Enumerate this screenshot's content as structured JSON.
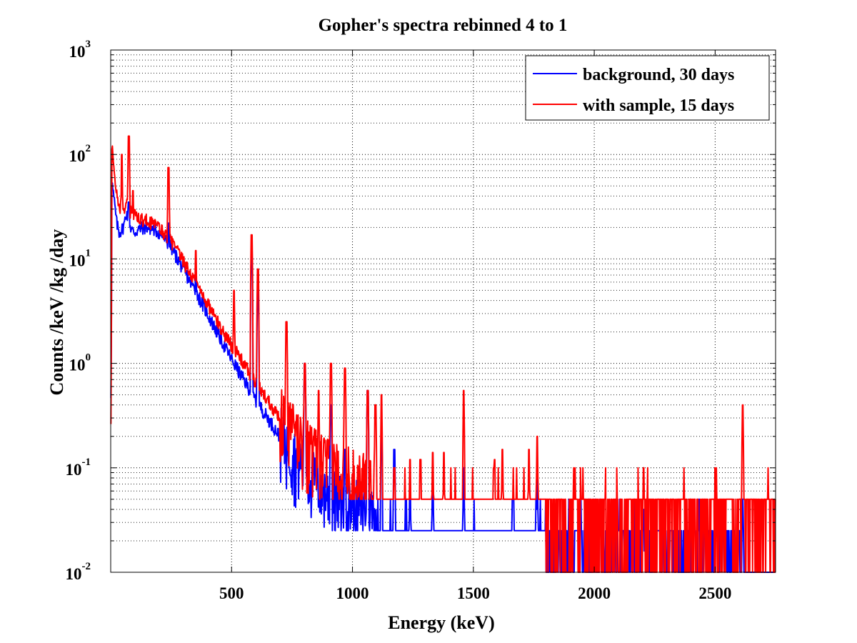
{
  "chart_data": {
    "type": "line",
    "title": "Gopher's spectra rebinned 4 to 1",
    "xlabel": "Energy (keV)",
    "ylabel": "Counts /keV /kg /day",
    "xlim": [
      0,
      2750
    ],
    "ylim": [
      0.01,
      1000
    ],
    "y_scale": "log",
    "grid": true,
    "x_ticks": [
      500,
      1000,
      1500,
      2000,
      2500
    ],
    "x_tick_labels": [
      "500",
      "1000",
      "1500",
      "2000",
      "2500"
    ],
    "y_ticks": [
      {
        "value": 0.01,
        "base": "10",
        "exp": "-2"
      },
      {
        "value": 0.1,
        "base": "10",
        "exp": "-1"
      },
      {
        "value": 1,
        "base": "10",
        "exp": "0"
      },
      {
        "value": 10,
        "base": "10",
        "exp": "1"
      },
      {
        "value": 100,
        "base": "10",
        "exp": "2"
      },
      {
        "value": 1000,
        "base": "10",
        "exp": "3"
      }
    ],
    "legend_position": "top-right",
    "series": [
      {
        "name": "background, 30 days",
        "color": "#0000ff",
        "continuum": [
          [
            2,
            0.5
          ],
          [
            5,
            55
          ],
          [
            15,
            35
          ],
          [
            25,
            22
          ],
          [
            35,
            18
          ],
          [
            45,
            19
          ],
          [
            55,
            21
          ],
          [
            65,
            28
          ],
          [
            75,
            24
          ],
          [
            85,
            19
          ],
          [
            100,
            18
          ],
          [
            130,
            20
          ],
          [
            160,
            20
          ],
          [
            200,
            18
          ],
          [
            250,
            13
          ],
          [
            300,
            8
          ],
          [
            350,
            5
          ],
          [
            400,
            3
          ],
          [
            450,
            1.8
          ],
          [
            500,
            1.1
          ],
          [
            550,
            0.7
          ],
          [
            600,
            0.45
          ],
          [
            650,
            0.3
          ],
          [
            700,
            0.2
          ],
          [
            750,
            0.13
          ],
          [
            800,
            0.09
          ],
          [
            850,
            0.07
          ],
          [
            900,
            0.05
          ],
          [
            1000,
            0.04
          ],
          [
            1100,
            0.035
          ]
        ],
        "peaks": [
          [
            75,
            35
          ],
          [
            240,
            22
          ],
          [
            352,
            8
          ],
          [
            583,
            12
          ],
          [
            609,
            5
          ],
          [
            803,
            1.0
          ],
          [
            911,
            0.4
          ],
          [
            969,
            0.15
          ],
          [
            1063,
            0.55
          ],
          [
            1120,
            0.3
          ],
          [
            1173,
            0.15
          ],
          [
            1238,
            0.08
          ],
          [
            1332,
            0.09
          ],
          [
            1460,
            0.1
          ],
          [
            1665,
            0.05
          ],
          [
            1764,
            0.1
          ],
          [
            2204,
            0.04
          ],
          [
            2614,
            0.05
          ]
        ],
        "floor_value": 0.025,
        "floor_range": [
          780,
          2620
        ]
      },
      {
        "name": "with sample, 15 days",
        "color": "#ff0000",
        "continuum": [
          [
            2,
            0.3
          ],
          [
            5,
            120
          ],
          [
            15,
            65
          ],
          [
            25,
            40
          ],
          [
            35,
            32
          ],
          [
            45,
            30
          ],
          [
            55,
            31
          ],
          [
            65,
            35
          ],
          [
            75,
            30
          ],
          [
            85,
            28
          ],
          [
            100,
            26
          ],
          [
            130,
            24
          ],
          [
            160,
            23
          ],
          [
            200,
            20
          ],
          [
            250,
            15
          ],
          [
            300,
            9.5
          ],
          [
            350,
            6
          ],
          [
            400,
            3.8
          ],
          [
            450,
            2.3
          ],
          [
            500,
            1.5
          ],
          [
            550,
            1.0
          ],
          [
            600,
            0.65
          ],
          [
            650,
            0.45
          ],
          [
            700,
            0.3
          ],
          [
            750,
            0.22
          ],
          [
            800,
            0.16
          ],
          [
            850,
            0.12
          ],
          [
            900,
            0.1
          ],
          [
            1000,
            0.08
          ],
          [
            1100,
            0.06
          ]
        ],
        "peaks": [
          [
            46,
            100
          ],
          [
            75,
            150
          ],
          [
            92,
            45
          ],
          [
            239,
            75
          ],
          [
            295,
            10
          ],
          [
            352,
            12
          ],
          [
            510,
            5
          ],
          [
            583,
            17
          ],
          [
            609,
            8
          ],
          [
            727,
            2.5
          ],
          [
            803,
            1.0
          ],
          [
            860,
            0.55
          ],
          [
            911,
            1.0
          ],
          [
            969,
            0.9
          ],
          [
            1063,
            0.55
          ],
          [
            1095,
            0.4
          ],
          [
            1120,
            0.5
          ],
          [
            1173,
            0.1
          ],
          [
            1238,
            0.12
          ],
          [
            1281,
            0.12
          ],
          [
            1332,
            0.14
          ],
          [
            1378,
            0.14
          ],
          [
            1460,
            0.55
          ],
          [
            1588,
            0.12
          ],
          [
            1620,
            0.15
          ],
          [
            1730,
            0.15
          ],
          [
            1764,
            0.2
          ],
          [
            2204,
            0.1
          ],
          [
            2614,
            0.4
          ]
        ],
        "floor_value": 0.05,
        "floor_range": [
          720,
          2750
        ]
      }
    ]
  }
}
